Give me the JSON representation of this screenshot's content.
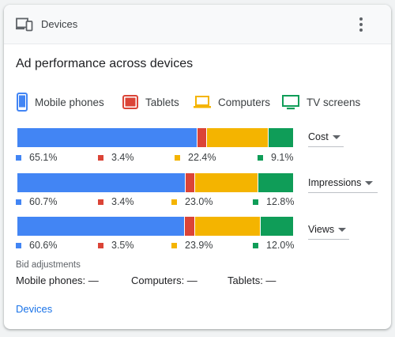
{
  "header": {
    "title": "Devices",
    "icon": "devices-icon",
    "menu_icon": "more-vert-icon"
  },
  "main_title": "Ad performance across devices",
  "colors": {
    "mobile": "#4285f4",
    "tablet": "#db4437",
    "computer": "#f4b400",
    "tv": "#0f9d58"
  },
  "legend": [
    {
      "label": "Mobile phones",
      "icon": "smartphone-icon"
    },
    {
      "label": "Tablets",
      "icon": "tablet-icon"
    },
    {
      "label": "Computers",
      "icon": "laptop-icon"
    },
    {
      "label": "TV screens",
      "icon": "tv-icon"
    }
  ],
  "rows": [
    {
      "metric": "Cost",
      "labels": [
        "65.1%",
        "3.4%",
        "22.4%",
        "9.1%"
      ]
    },
    {
      "metric": "Impressions",
      "labels": [
        "60.7%",
        "3.4%",
        "23.0%",
        "12.8%"
      ]
    },
    {
      "metric": "Views",
      "labels": [
        "60.6%",
        "3.5%",
        "23.9%",
        "12.0%"
      ]
    }
  ],
  "bid_adjustments": {
    "heading": "Bid adjustments",
    "items": [
      "Mobile phones: —",
      "Computers: —",
      "Tablets: —"
    ]
  },
  "footer_link": "Devices"
}
